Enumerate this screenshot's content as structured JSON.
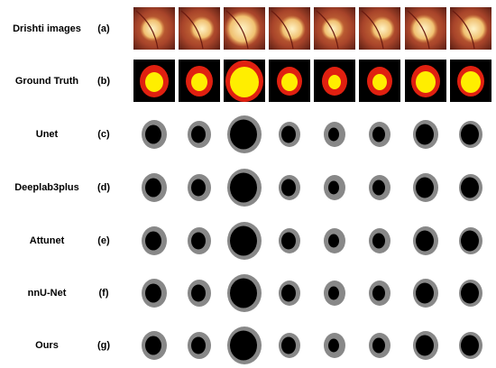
{
  "rows": [
    {
      "label": "Drishti images",
      "letter": "(a)"
    },
    {
      "label": "Ground Truth",
      "letter": "(b)"
    },
    {
      "label": "Unet",
      "letter": "(c)"
    },
    {
      "label": "Deeplab3plus",
      "letter": "(d)"
    },
    {
      "label": "Attunet",
      "letter": "(e)"
    },
    {
      "label": "nnU-Net",
      "letter": "(f)"
    },
    {
      "label": "Ours",
      "letter": "(g)"
    }
  ]
}
